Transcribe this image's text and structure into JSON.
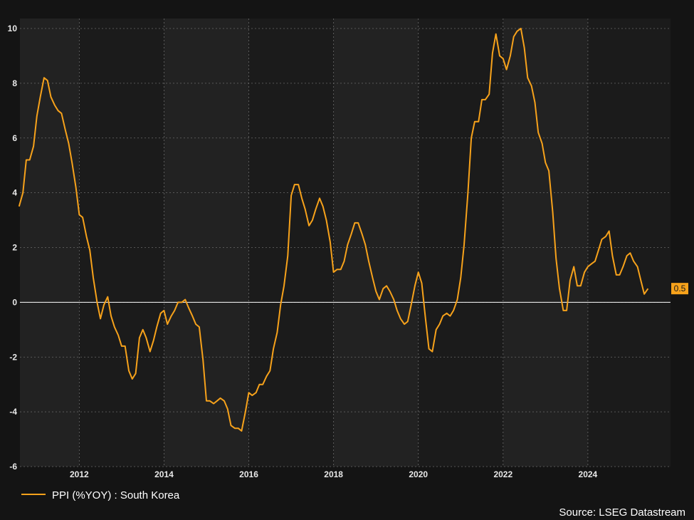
{
  "chart_data": {
    "type": "line",
    "title": "",
    "xlabel": "",
    "ylabel": "",
    "xlim": [
      2010.6,
      2025.95
    ],
    "ylim": [
      -6,
      10
    ],
    "y_ticks": [
      "-6",
      "-4",
      "-2",
      "0",
      "2",
      "4",
      "6",
      "8",
      "10"
    ],
    "x_ticks": [
      "2012",
      "2014",
      "2016",
      "2018",
      "2020",
      "2022",
      "2024"
    ],
    "grid": true,
    "legend_position": "bottom-left",
    "background_bands": "alternating two-year shading",
    "last_value_label": "0.5",
    "source": "Source: LSEG Datastream",
    "colors": {
      "line": "#f7a21b",
      "background": "#141414",
      "band": "#222222",
      "zero_line": "#ffffff"
    },
    "series": [
      {
        "name": "PPI (%YOY) : South Korea",
        "points": [
          [
            2010.58,
            3.5
          ],
          [
            2010.67,
            4.0
          ],
          [
            2010.75,
            5.2
          ],
          [
            2010.83,
            5.2
          ],
          [
            2010.92,
            5.7
          ],
          [
            2011.0,
            6.8
          ],
          [
            2011.08,
            7.5
          ],
          [
            2011.17,
            8.2
          ],
          [
            2011.25,
            8.1
          ],
          [
            2011.33,
            7.5
          ],
          [
            2011.42,
            7.2
          ],
          [
            2011.5,
            7.0
          ],
          [
            2011.58,
            6.9
          ],
          [
            2011.67,
            6.3
          ],
          [
            2011.75,
            5.8
          ],
          [
            2011.83,
            5.1
          ],
          [
            2011.92,
            4.2
          ],
          [
            2012.0,
            3.2
          ],
          [
            2012.08,
            3.1
          ],
          [
            2012.17,
            2.4
          ],
          [
            2012.25,
            1.9
          ],
          [
            2012.33,
            0.9
          ],
          [
            2012.42,
            0.0
          ],
          [
            2012.5,
            -0.6
          ],
          [
            2012.58,
            -0.1
          ],
          [
            2012.67,
            0.2
          ],
          [
            2012.75,
            -0.5
          ],
          [
            2012.83,
            -0.9
          ],
          [
            2012.92,
            -1.2
          ],
          [
            2013.0,
            -1.6
          ],
          [
            2013.08,
            -1.6
          ],
          [
            2013.17,
            -2.5
          ],
          [
            2013.25,
            -2.8
          ],
          [
            2013.33,
            -2.6
          ],
          [
            2013.42,
            -1.3
          ],
          [
            2013.5,
            -1.0
          ],
          [
            2013.58,
            -1.3
          ],
          [
            2013.67,
            -1.8
          ],
          [
            2013.75,
            -1.4
          ],
          [
            2013.83,
            -0.9
          ],
          [
            2013.92,
            -0.4
          ],
          [
            2014.0,
            -0.3
          ],
          [
            2014.08,
            -0.8
          ],
          [
            2014.17,
            -0.5
          ],
          [
            2014.25,
            -0.3
          ],
          [
            2014.33,
            0.0
          ],
          [
            2014.42,
            0.0
          ],
          [
            2014.5,
            0.1
          ],
          [
            2014.58,
            -0.2
          ],
          [
            2014.67,
            -0.5
          ],
          [
            2014.75,
            -0.8
          ],
          [
            2014.83,
            -0.9
          ],
          [
            2014.92,
            -2.1
          ],
          [
            2015.0,
            -3.6
          ],
          [
            2015.08,
            -3.6
          ],
          [
            2015.17,
            -3.7
          ],
          [
            2015.25,
            -3.6
          ],
          [
            2015.33,
            -3.5
          ],
          [
            2015.42,
            -3.6
          ],
          [
            2015.5,
            -3.9
          ],
          [
            2015.58,
            -4.5
          ],
          [
            2015.67,
            -4.6
          ],
          [
            2015.75,
            -4.6
          ],
          [
            2015.83,
            -4.7
          ],
          [
            2015.92,
            -4.0
          ],
          [
            2016.0,
            -3.3
          ],
          [
            2016.08,
            -3.4
          ],
          [
            2016.17,
            -3.3
          ],
          [
            2016.25,
            -3.0
          ],
          [
            2016.33,
            -3.0
          ],
          [
            2016.42,
            -2.7
          ],
          [
            2016.5,
            -2.5
          ],
          [
            2016.58,
            -1.7
          ],
          [
            2016.67,
            -1.1
          ],
          [
            2016.75,
            -0.1
          ],
          [
            2016.83,
            0.6
          ],
          [
            2016.92,
            1.7
          ],
          [
            2017.0,
            3.9
          ],
          [
            2017.08,
            4.3
          ],
          [
            2017.17,
            4.3
          ],
          [
            2017.25,
            3.8
          ],
          [
            2017.33,
            3.4
          ],
          [
            2017.42,
            2.8
          ],
          [
            2017.5,
            3.0
          ],
          [
            2017.58,
            3.4
          ],
          [
            2017.67,
            3.8
          ],
          [
            2017.75,
            3.5
          ],
          [
            2017.83,
            3.0
          ],
          [
            2017.92,
            2.2
          ],
          [
            2018.0,
            1.1
          ],
          [
            2018.08,
            1.2
          ],
          [
            2018.17,
            1.2
          ],
          [
            2018.25,
            1.5
          ],
          [
            2018.33,
            2.1
          ],
          [
            2018.42,
            2.5
          ],
          [
            2018.5,
            2.9
          ],
          [
            2018.58,
            2.9
          ],
          [
            2018.67,
            2.5
          ],
          [
            2018.75,
            2.1
          ],
          [
            2018.83,
            1.5
          ],
          [
            2018.92,
            0.9
          ],
          [
            2019.0,
            0.4
          ],
          [
            2019.08,
            0.1
          ],
          [
            2019.17,
            0.5
          ],
          [
            2019.25,
            0.6
          ],
          [
            2019.33,
            0.4
          ],
          [
            2019.42,
            0.1
          ],
          [
            2019.5,
            -0.3
          ],
          [
            2019.58,
            -0.6
          ],
          [
            2019.67,
            -0.8
          ],
          [
            2019.75,
            -0.7
          ],
          [
            2019.83,
            -0.1
          ],
          [
            2019.92,
            0.6
          ],
          [
            2020.0,
            1.1
          ],
          [
            2020.08,
            0.7
          ],
          [
            2020.17,
            -0.6
          ],
          [
            2020.25,
            -1.7
          ],
          [
            2020.33,
            -1.8
          ],
          [
            2020.42,
            -1.0
          ],
          [
            2020.5,
            -0.8
          ],
          [
            2020.58,
            -0.5
          ],
          [
            2020.67,
            -0.4
          ],
          [
            2020.75,
            -0.5
          ],
          [
            2020.83,
            -0.3
          ],
          [
            2020.92,
            0.1
          ],
          [
            2021.0,
            0.9
          ],
          [
            2021.08,
            2.1
          ],
          [
            2021.17,
            4.0
          ],
          [
            2021.25,
            6.0
          ],
          [
            2021.33,
            6.6
          ],
          [
            2021.42,
            6.6
          ],
          [
            2021.5,
            7.4
          ],
          [
            2021.58,
            7.4
          ],
          [
            2021.67,
            7.6
          ],
          [
            2021.75,
            9.1
          ],
          [
            2021.83,
            9.8
          ],
          [
            2021.92,
            9.0
          ],
          [
            2022.0,
            8.9
          ],
          [
            2022.08,
            8.5
          ],
          [
            2022.17,
            9.0
          ],
          [
            2022.25,
            9.7
          ],
          [
            2022.33,
            9.9
          ],
          [
            2022.42,
            10.0
          ],
          [
            2022.5,
            9.3
          ],
          [
            2022.58,
            8.2
          ],
          [
            2022.67,
            7.9
          ],
          [
            2022.75,
            7.3
          ],
          [
            2022.83,
            6.2
          ],
          [
            2022.92,
            5.8
          ],
          [
            2023.0,
            5.1
          ],
          [
            2023.08,
            4.8
          ],
          [
            2023.17,
            3.3
          ],
          [
            2023.25,
            1.6
          ],
          [
            2023.33,
            0.5
          ],
          [
            2023.42,
            -0.3
          ],
          [
            2023.5,
            -0.3
          ],
          [
            2023.58,
            0.8
          ],
          [
            2023.67,
            1.3
          ],
          [
            2023.75,
            0.6
          ],
          [
            2023.83,
            0.6
          ],
          [
            2023.92,
            1.1
          ],
          [
            2024.0,
            1.3
          ],
          [
            2024.08,
            1.4
          ],
          [
            2024.17,
            1.5
          ],
          [
            2024.25,
            1.9
          ],
          [
            2024.33,
            2.3
          ],
          [
            2024.42,
            2.4
          ],
          [
            2024.5,
            2.6
          ],
          [
            2024.58,
            1.7
          ],
          [
            2024.67,
            1.0
          ],
          [
            2024.75,
            1.0
          ],
          [
            2024.83,
            1.3
          ],
          [
            2024.92,
            1.7
          ],
          [
            2025.0,
            1.8
          ],
          [
            2025.08,
            1.5
          ],
          [
            2025.17,
            1.3
          ],
          [
            2025.25,
            0.8
          ],
          [
            2025.33,
            0.3
          ],
          [
            2025.42,
            0.5
          ]
        ]
      }
    ]
  }
}
